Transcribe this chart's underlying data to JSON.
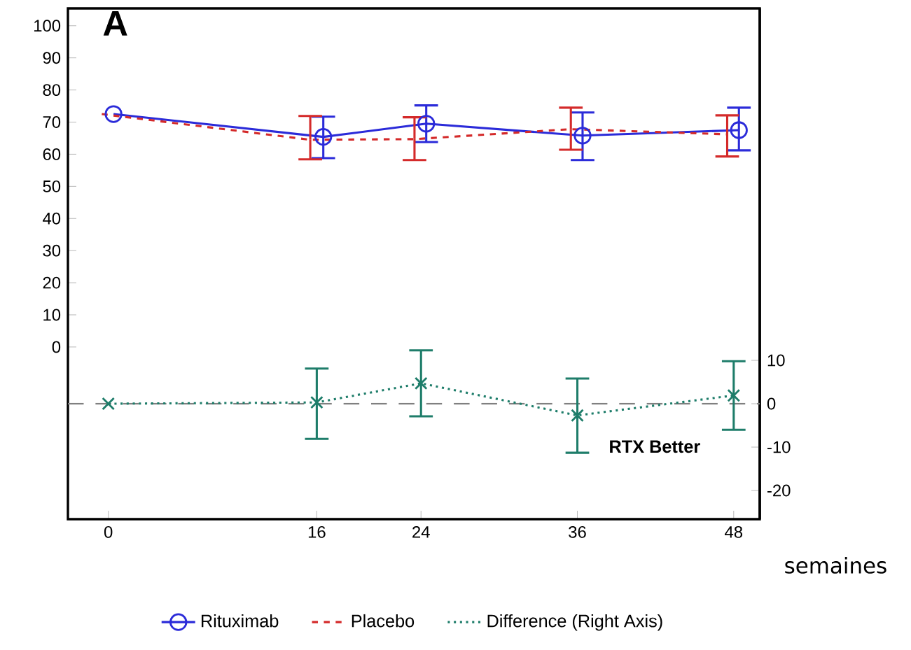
{
  "chart_data": {
    "type": "line",
    "title": "A",
    "xlabel": "semaines",
    "xlim": [
      -3.1,
      50
    ],
    "xticks": [
      0,
      16,
      24,
      36,
      48
    ],
    "ylim": [
      -53.6,
      105.4
    ],
    "yticks": [
      0,
      10,
      20,
      30,
      40,
      50,
      60,
      70,
      80,
      90,
      100
    ],
    "y2lim": [
      -26.6,
      91.1
    ],
    "y2ticks": [
      -20,
      -10,
      0,
      10
    ],
    "legend": "bottom",
    "grid": false,
    "series": [
      {
        "name": "Rituximab",
        "color": "#2b2bd9",
        "marker": "circle",
        "line_style": "solid",
        "x": [
          0.4,
          16.5,
          24.4,
          36.4,
          48.4
        ],
        "values": [
          72.5,
          65.4,
          69.5,
          65.8,
          67.5
        ],
        "errors": [
          null,
          [
            58.8,
            71.7
          ],
          [
            63.8,
            75.2
          ],
          [
            58.2,
            73.0
          ],
          [
            61.2,
            74.5
          ]
        ]
      },
      {
        "name": "Placebo",
        "color": "#d42a2a",
        "marker": "none",
        "line_style": "dashed",
        "x": [
          -0.5,
          15.5,
          23.5,
          35.5,
          47.5
        ],
        "values": [
          72.5,
          64.5,
          64.7,
          67.8,
          66.2
        ],
        "errors": [
          null,
          [
            58.4,
            71.9
          ],
          [
            58.2,
            71.5
          ],
          [
            61.4,
            74.5
          ],
          [
            59.3,
            72.1
          ]
        ]
      },
      {
        "name": "Difference (Right Axis)",
        "color": "#1e7d6a",
        "marker": "cross",
        "line_style": "dotted",
        "axis": "y2",
        "x": [
          0,
          16,
          24,
          36,
          48
        ],
        "values": [
          0,
          0.3,
          4.7,
          -2.7,
          1.9
        ],
        "errors": [
          null,
          [
            -8.1,
            8.1
          ],
          [
            -2.9,
            12.3
          ],
          [
            -11.3,
            5.8
          ],
          [
            -6.0,
            9.8
          ]
        ]
      }
    ],
    "ref_lines": [
      {
        "axis": "y2",
        "value": 0,
        "color": "#808080",
        "line_style": "dashed"
      }
    ],
    "annotations": [
      "RTX Better"
    ]
  }
}
